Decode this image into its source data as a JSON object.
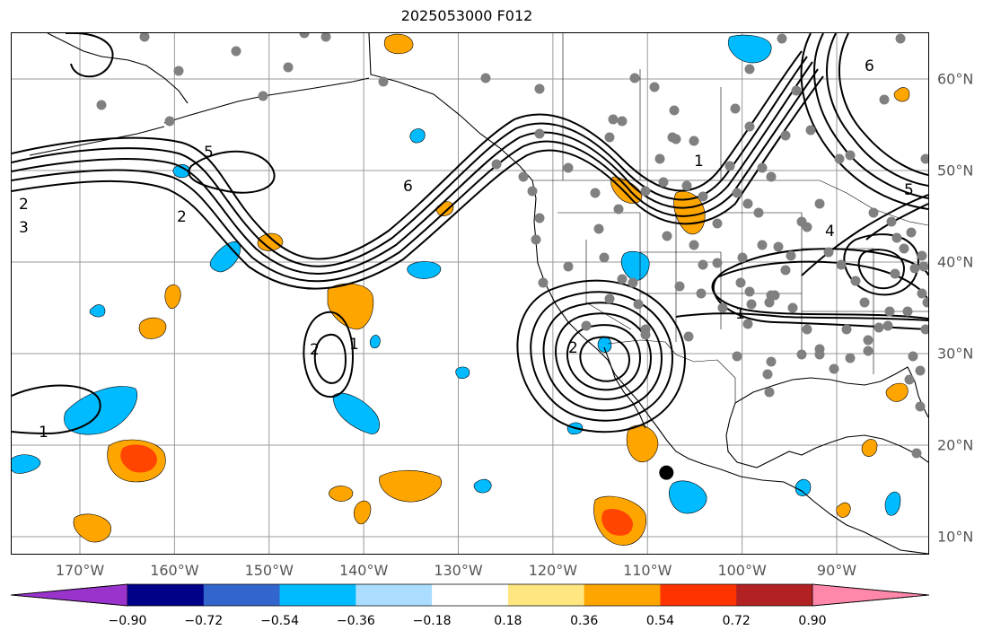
{
  "title": "2025053000 F012",
  "colors": {
    "grid": "#999999",
    "coast": "#000000",
    "contour": "#000000",
    "station": "#808080",
    "tick_text": "#555555"
  },
  "map": {
    "projection": "plate-carree",
    "lon_range": [
      -180,
      -80
    ],
    "lat_range": [
      8,
      65
    ],
    "lon_ticks": [
      {
        "value": -170,
        "label": "170°W"
      },
      {
        "value": -160,
        "label": "160°W"
      },
      {
        "value": -150,
        "label": "150°W"
      },
      {
        "value": -140,
        "label": "140°W"
      },
      {
        "value": -130,
        "label": "130°W"
      },
      {
        "value": -120,
        "label": "120°W"
      },
      {
        "value": -110,
        "label": "110°W"
      },
      {
        "value": -100,
        "label": "100°W"
      },
      {
        "value": -90,
        "label": "90°W"
      }
    ],
    "lat_ticks": [
      {
        "value": 60,
        "label": "60°N"
      },
      {
        "value": 50,
        "label": "50°N"
      },
      {
        "value": 40,
        "label": "40°N"
      },
      {
        "value": 30,
        "label": "30°N"
      },
      {
        "value": 20,
        "label": "20°N"
      },
      {
        "value": 10,
        "label": "10°N"
      }
    ],
    "contour_labels": [
      "1",
      "2",
      "3",
      "4",
      "5",
      "6"
    ],
    "marker": {
      "lon": -108,
      "lat": 17,
      "color": "#000000"
    }
  },
  "colorbar": {
    "colors": [
      "#9933cc",
      "#000088",
      "#3366cc",
      "#00bbff",
      "#aaddff",
      "#ffffff",
      "#ffe680",
      "#ffa500",
      "#ff3300",
      "#b22222",
      "#ff88aa"
    ],
    "bounds": [
      -0.9,
      -0.72,
      -0.54,
      -0.36,
      -0.18,
      0.18,
      0.36,
      0.54,
      0.72,
      0.9
    ],
    "labels": [
      "−0.90",
      "−0.72",
      "−0.54",
      "−0.36",
      "−0.18",
      "0.18",
      "0.36",
      "0.54",
      "0.72",
      "0.90"
    ]
  }
}
